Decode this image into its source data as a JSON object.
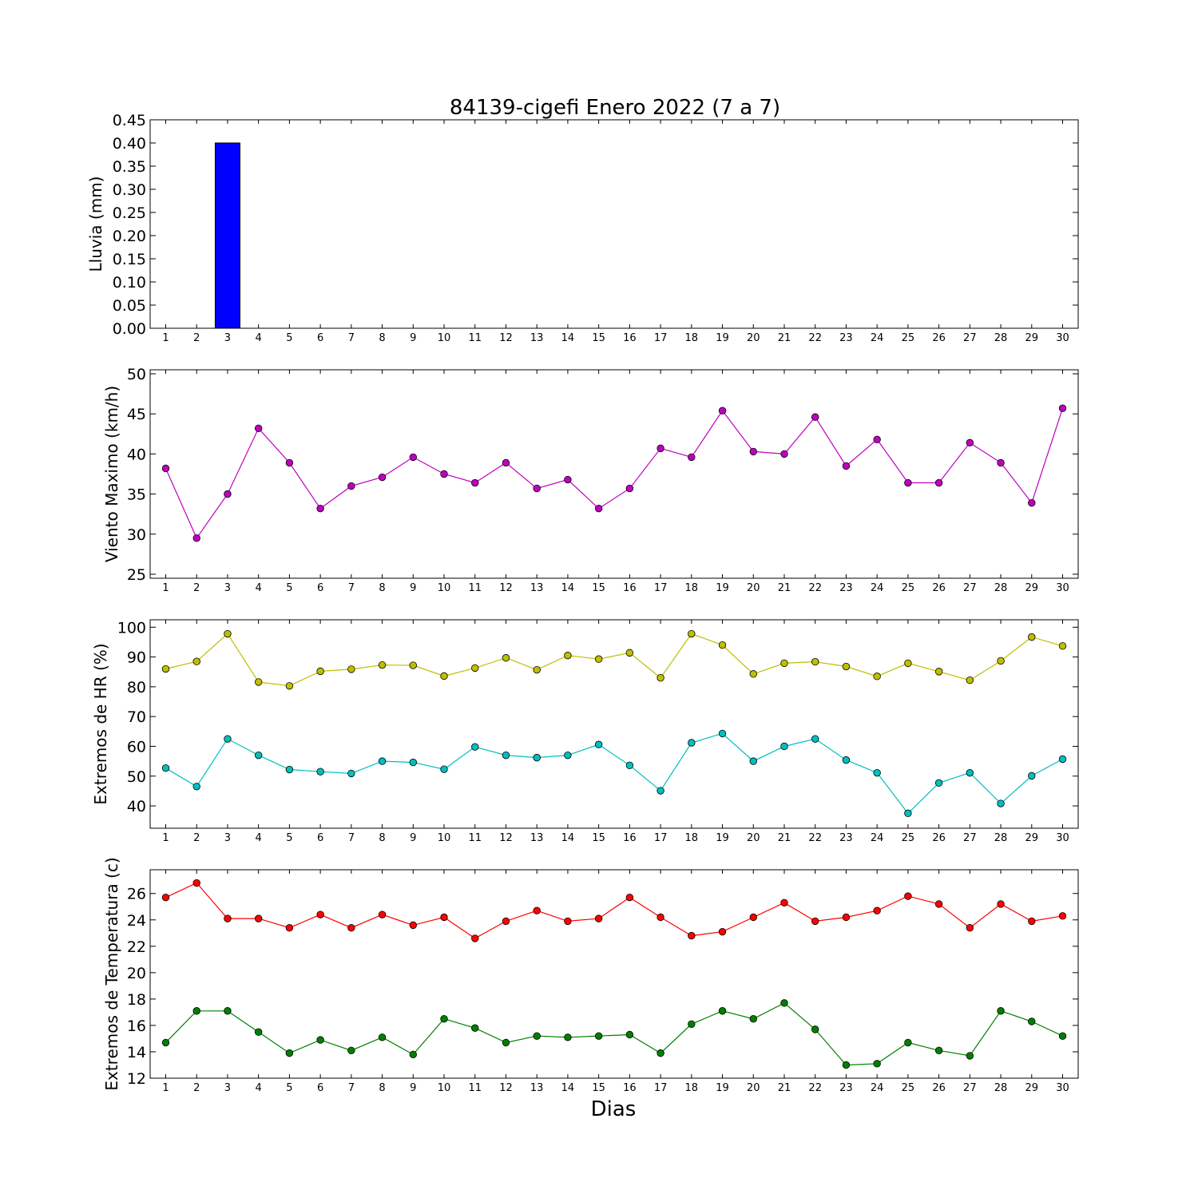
{
  "chart_data": [
    {
      "type": "bar",
      "title": "84139-cigefi Enero 2022  (7 a 7)",
      "ylabel": "Lluvia (mm)",
      "xlabel": "",
      "categories": [
        1,
        2,
        3,
        4,
        5,
        6,
        7,
        8,
        9,
        10,
        11,
        12,
        13,
        14,
        15,
        16,
        17,
        18,
        19,
        20,
        21,
        22,
        23,
        24,
        25,
        26,
        27,
        28,
        29,
        30
      ],
      "values": [
        0,
        0,
        0.4,
        0,
        0,
        0,
        0,
        0,
        0,
        0,
        0,
        0,
        0,
        0,
        0,
        0,
        0,
        0,
        0,
        0,
        0,
        0,
        0,
        0,
        0,
        0,
        0,
        0,
        0,
        0
      ],
      "ylim": [
        0,
        0.45
      ],
      "yticks": [
        "0.00",
        "0.05",
        "0.10",
        "0.15",
        "0.20",
        "0.25",
        "0.30",
        "0.35",
        "0.40",
        "0.45"
      ],
      "color": "#0000ff",
      "grid": false
    },
    {
      "type": "line",
      "ylabel": "Viento Maximo (km/h)",
      "x": [
        1,
        2,
        3,
        4,
        5,
        6,
        7,
        8,
        9,
        10,
        11,
        12,
        13,
        14,
        15,
        16,
        17,
        18,
        19,
        20,
        21,
        22,
        23,
        24,
        25,
        26,
        27,
        28,
        29,
        30
      ],
      "series": [
        {
          "color": "#bf00bf",
          "values": [
            38.2,
            29.5,
            35.0,
            43.2,
            38.9,
            33.2,
            36.0,
            37.1,
            39.6,
            37.5,
            36.4,
            38.9,
            35.7,
            36.8,
            33.2,
            35.7,
            40.7,
            39.6,
            45.4,
            40.3,
            40.0,
            44.6,
            38.5,
            41.8,
            36.4,
            36.4,
            41.4,
            38.9,
            33.9,
            45.7
          ]
        }
      ],
      "ylim": [
        24.5,
        50.5
      ],
      "yticks": [
        "25",
        "30",
        "35",
        "40",
        "45",
        "50"
      ],
      "grid": false
    },
    {
      "type": "line",
      "ylabel": "Extremos de HR (%)",
      "x": [
        1,
        2,
        3,
        4,
        5,
        6,
        7,
        8,
        9,
        10,
        11,
        12,
        13,
        14,
        15,
        16,
        17,
        18,
        19,
        20,
        21,
        22,
        23,
        24,
        25,
        26,
        27,
        28,
        29,
        30
      ],
      "series": [
        {
          "color": "#bfbf00",
          "values": [
            86,
            88.5,
            97.8,
            81.6,
            80.3,
            85.2,
            85.9,
            87.3,
            87.2,
            83.6,
            86.3,
            89.7,
            85.7,
            90.5,
            89.3,
            91.4,
            83.0,
            97.8,
            94.0,
            84.3,
            87.9,
            88.4,
            86.8,
            83.5,
            87.9,
            85.1,
            82.2,
            88.7,
            96.7,
            93.7
          ]
        },
        {
          "color": "#00bfbf",
          "values": [
            52.7,
            46.5,
            62.5,
            57.0,
            52.2,
            51.5,
            50.9,
            55.0,
            54.6,
            52.3,
            59.8,
            57.0,
            56.2,
            57.0,
            60.6,
            53.6,
            45.1,
            61.2,
            64.3,
            55.0,
            60.0,
            62.5,
            55.4,
            51.1,
            37.5,
            47.7,
            51.1,
            40.8,
            50.1,
            55.7
          ]
        }
      ],
      "ylim": [
        32.5,
        102.5
      ],
      "yticks": [
        "40",
        "50",
        "60",
        "70",
        "80",
        "90",
        "100"
      ],
      "grid": false
    },
    {
      "type": "line",
      "ylabel": "Extremos de Temperatura (c)",
      "xlabel": "Dias",
      "x": [
        1,
        2,
        3,
        4,
        5,
        6,
        7,
        8,
        9,
        10,
        11,
        12,
        13,
        14,
        15,
        16,
        17,
        18,
        19,
        20,
        21,
        22,
        23,
        24,
        25,
        26,
        27,
        28,
        29,
        30
      ],
      "series": [
        {
          "color": "#ff0000",
          "values": [
            25.7,
            26.8,
            24.1,
            24.1,
            23.4,
            24.4,
            23.4,
            24.4,
            23.6,
            24.2,
            22.6,
            23.9,
            24.7,
            23.9,
            24.1,
            25.7,
            24.2,
            22.8,
            23.1,
            24.2,
            25.3,
            23.9,
            24.2,
            24.7,
            25.8,
            25.2,
            23.4,
            25.2,
            23.9,
            24.3
          ]
        },
        {
          "color": "#008000",
          "values": [
            14.7,
            17.1,
            17.1,
            15.5,
            13.9,
            14.9,
            14.1,
            15.1,
            13.8,
            16.5,
            15.8,
            14.7,
            15.2,
            15.1,
            15.2,
            15.3,
            13.9,
            16.1,
            17.1,
            16.5,
            17.7,
            15.7,
            13.0,
            13.1,
            14.7,
            14.1,
            13.7,
            17.1,
            16.3,
            15.2
          ]
        }
      ],
      "ylim": [
        12,
        27.8
      ],
      "yticks": [
        "12",
        "14",
        "16",
        "18",
        "20",
        "22",
        "24",
        "26"
      ],
      "grid": false
    }
  ]
}
